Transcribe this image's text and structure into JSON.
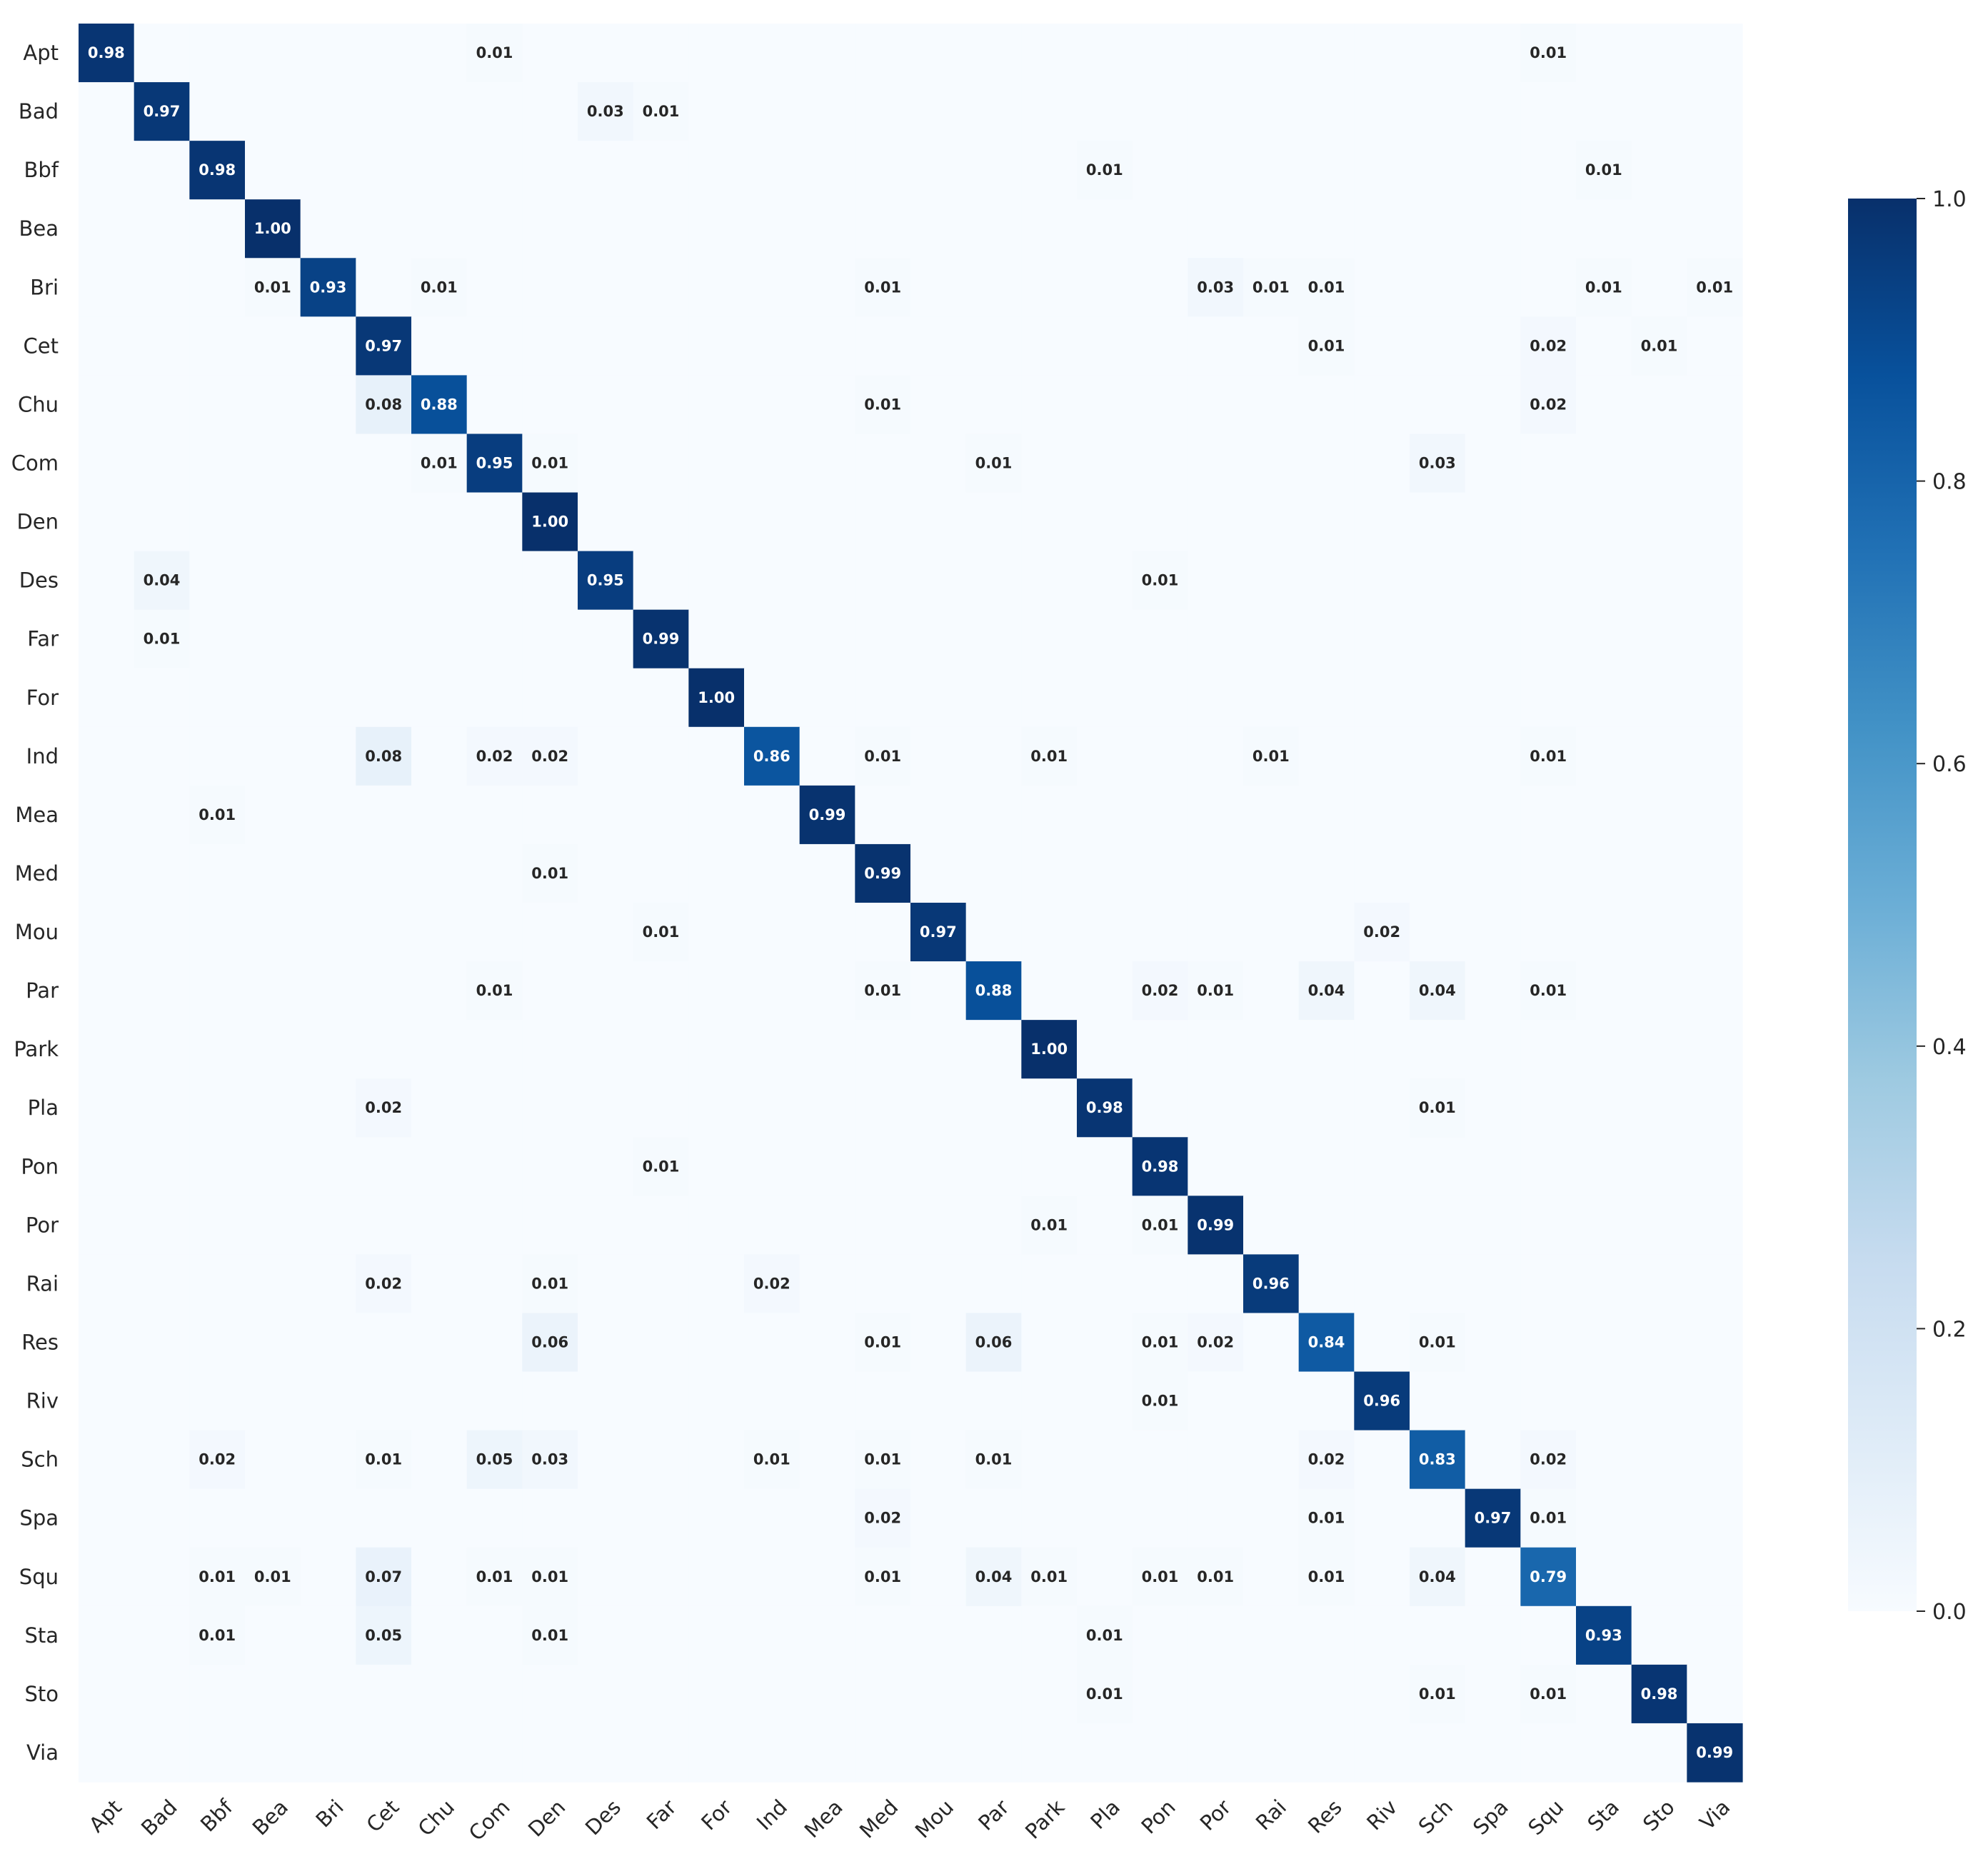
{
  "chart_data": {
    "type": "heatmap",
    "title": "",
    "xlabel": "",
    "ylabel": "",
    "labels": [
      "Apt",
      "Bad",
      "Bbf",
      "Bea",
      "Bri",
      "Cet",
      "Chu",
      "Com",
      "Den",
      "Des",
      "Far",
      "For",
      "Ind",
      "Mea",
      "Med",
      "Mou",
      "Par",
      "Park",
      "Pla",
      "Pon",
      "Por",
      "Rai",
      "Res",
      "Riv",
      "Sch",
      "Spa",
      "Squ",
      "Sta",
      "Sto",
      "Via"
    ],
    "x_tick_rotation_deg": 45,
    "value_format": "2 decimals",
    "colormap": "Blues",
    "color_range": [
      0.0,
      1.0
    ],
    "colorbar_ticks": [
      "0.0",
      "0.2",
      "0.4",
      "0.6",
      "0.8",
      "1.0"
    ],
    "colorbar_placement": "right",
    "annotate_threshold": 0.005,
    "matrix": [
      [
        0.98,
        0,
        0,
        0,
        0,
        0,
        0,
        0.01,
        0,
        0,
        0,
        0,
        0,
        0,
        0,
        0,
        0,
        0,
        0,
        0,
        0,
        0,
        0,
        0,
        0,
        0,
        0.01,
        0,
        0,
        0
      ],
      [
        0,
        0.97,
        0,
        0,
        0,
        0,
        0,
        0,
        0,
        0.03,
        0.01,
        0,
        0,
        0,
        0,
        0,
        0,
        0,
        0,
        0,
        0,
        0,
        0,
        0,
        0,
        0,
        0,
        0,
        0,
        0
      ],
      [
        0,
        0,
        0.98,
        0,
        0,
        0,
        0,
        0,
        0,
        0,
        0,
        0,
        0,
        0,
        0,
        0,
        0,
        0,
        0.01,
        0,
        0,
        0,
        0,
        0,
        0,
        0,
        0,
        0.01,
        0,
        0
      ],
      [
        0,
        0,
        0,
        1.0,
        0,
        0,
        0,
        0,
        0,
        0,
        0,
        0,
        0,
        0,
        0,
        0,
        0,
        0,
        0,
        0,
        0,
        0,
        0,
        0,
        0,
        0,
        0,
        0,
        0,
        0
      ],
      [
        0,
        0,
        0,
        0.01,
        0.93,
        0,
        0.01,
        0,
        0,
        0,
        0,
        0,
        0,
        0,
        0.01,
        0,
        0,
        0,
        0,
        0,
        0.03,
        0.01,
        0.01,
        0,
        0,
        0,
        0,
        0.01,
        0,
        0.01
      ],
      [
        0,
        0,
        0,
        0,
        0,
        0.97,
        0,
        0,
        0,
        0,
        0,
        0,
        0,
        0,
        0,
        0,
        0,
        0,
        0,
        0,
        0,
        0,
        0.01,
        0,
        0,
        0,
        0.02,
        0,
        0.01,
        0
      ],
      [
        0,
        0,
        0,
        0,
        0,
        0.08,
        0.88,
        0,
        0,
        0,
        0,
        0,
        0,
        0,
        0.01,
        0,
        0,
        0,
        0,
        0,
        0,
        0,
        0,
        0,
        0,
        0,
        0.02,
        0,
        0,
        0
      ],
      [
        0,
        0,
        0,
        0,
        0,
        0,
        0.01,
        0.95,
        0.01,
        0,
        0,
        0,
        0,
        0,
        0,
        0,
        0.01,
        0,
        0,
        0,
        0,
        0,
        0,
        0,
        0.03,
        0,
        0,
        0,
        0,
        0
      ],
      [
        0,
        0,
        0,
        0,
        0,
        0,
        0,
        0,
        1.0,
        0,
        0,
        0,
        0,
        0,
        0,
        0,
        0,
        0,
        0,
        0,
        0,
        0,
        0,
        0,
        0,
        0,
        0,
        0,
        0,
        0
      ],
      [
        0,
        0.04,
        0,
        0,
        0,
        0,
        0,
        0,
        0,
        0.95,
        0,
        0,
        0,
        0,
        0,
        0,
        0,
        0,
        0,
        0.01,
        0,
        0,
        0,
        0,
        0,
        0,
        0,
        0,
        0,
        0
      ],
      [
        0,
        0.01,
        0,
        0,
        0,
        0,
        0,
        0,
        0,
        0,
        0.99,
        0,
        0,
        0,
        0,
        0,
        0,
        0,
        0,
        0,
        0,
        0,
        0,
        0,
        0,
        0,
        0,
        0,
        0,
        0
      ],
      [
        0,
        0,
        0,
        0,
        0,
        0,
        0,
        0,
        0,
        0,
        0,
        1.0,
        0,
        0,
        0,
        0,
        0,
        0,
        0,
        0,
        0,
        0,
        0,
        0,
        0,
        0,
        0,
        0,
        0,
        0
      ],
      [
        0,
        0,
        0,
        0,
        0,
        0.08,
        0,
        0.02,
        0.02,
        0,
        0,
        0,
        0.86,
        0,
        0.01,
        0,
        0,
        0.01,
        0,
        0,
        0,
        0.01,
        0,
        0,
        0,
        0,
        0.01,
        0,
        0,
        0
      ],
      [
        0,
        0,
        0.01,
        0,
        0,
        0,
        0,
        0,
        0,
        0,
        0,
        0,
        0,
        0.99,
        0,
        0,
        0,
        0,
        0,
        0,
        0,
        0,
        0,
        0,
        0,
        0,
        0,
        0,
        0,
        0
      ],
      [
        0,
        0,
        0,
        0,
        0,
        0,
        0,
        0,
        0.01,
        0,
        0,
        0,
        0,
        0,
        0.99,
        0,
        0,
        0,
        0,
        0,
        0,
        0,
        0,
        0,
        0,
        0,
        0,
        0,
        0,
        0
      ],
      [
        0,
        0,
        0,
        0,
        0,
        0,
        0,
        0,
        0,
        0,
        0.01,
        0,
        0,
        0,
        0,
        0.97,
        0,
        0,
        0,
        0,
        0,
        0,
        0,
        0.02,
        0,
        0,
        0,
        0,
        0,
        0
      ],
      [
        0,
        0,
        0,
        0,
        0,
        0,
        0,
        0.01,
        0,
        0,
        0,
        0,
        0,
        0,
        0.01,
        0,
        0.88,
        0,
        0,
        0.02,
        0.01,
        0,
        0.04,
        0,
        0.04,
        0,
        0.01,
        0,
        0,
        0
      ],
      [
        0,
        0,
        0,
        0,
        0,
        0,
        0,
        0,
        0,
        0,
        0,
        0,
        0,
        0,
        0,
        0,
        0,
        1.0,
        0,
        0,
        0,
        0,
        0,
        0,
        0,
        0,
        0,
        0,
        0,
        0
      ],
      [
        0,
        0,
        0,
        0,
        0,
        0.02,
        0,
        0,
        0,
        0,
        0,
        0,
        0,
        0,
        0,
        0,
        0,
        0,
        0.98,
        0,
        0,
        0,
        0,
        0,
        0.01,
        0,
        0,
        0,
        0,
        0
      ],
      [
        0,
        0,
        0,
        0,
        0,
        0,
        0,
        0,
        0,
        0,
        0.01,
        0,
        0,
        0,
        0,
        0,
        0,
        0,
        0,
        0.98,
        0,
        0,
        0,
        0,
        0,
        0,
        0,
        0,
        0,
        0
      ],
      [
        0,
        0,
        0,
        0,
        0,
        0,
        0,
        0,
        0,
        0,
        0,
        0,
        0,
        0,
        0,
        0,
        0,
        0.01,
        0,
        0.01,
        0.99,
        0,
        0,
        0,
        0,
        0,
        0,
        0,
        0,
        0
      ],
      [
        0,
        0,
        0,
        0,
        0,
        0.02,
        0,
        0,
        0.01,
        0,
        0,
        0,
        0.02,
        0,
        0,
        0,
        0,
        0,
        0,
        0,
        0,
        0.96,
        0,
        0,
        0,
        0,
        0,
        0,
        0,
        0
      ],
      [
        0,
        0,
        0,
        0,
        0,
        0,
        0,
        0,
        0.06,
        0,
        0,
        0,
        0,
        0,
        0.01,
        0,
        0.06,
        0,
        0,
        0.01,
        0.02,
        0,
        0.84,
        0,
        0.01,
        0,
        0,
        0,
        0,
        0
      ],
      [
        0,
        0,
        0,
        0,
        0,
        0,
        0,
        0,
        0,
        0,
        0,
        0,
        0,
        0,
        0,
        0,
        0,
        0,
        0,
        0.01,
        0,
        0,
        0,
        0.96,
        0,
        0,
        0,
        0,
        0,
        0
      ],
      [
        0,
        0,
        0.02,
        0,
        0,
        0.01,
        0,
        0.05,
        0.03,
        0,
        0,
        0,
        0.01,
        0,
        0.01,
        0,
        0.01,
        0,
        0,
        0,
        0,
        0,
        0.02,
        0,
        0.83,
        0,
        0.02,
        0,
        0,
        0
      ],
      [
        0,
        0,
        0,
        0,
        0,
        0,
        0,
        0,
        0,
        0,
        0,
        0,
        0,
        0,
        0.02,
        0,
        0,
        0,
        0,
        0,
        0,
        0,
        0.01,
        0,
        0,
        0.97,
        0.01,
        0,
        0,
        0
      ],
      [
        0,
        0,
        0.01,
        0.01,
        0,
        0.07,
        0,
        0.01,
        0.01,
        0,
        0,
        0,
        0,
        0,
        0.01,
        0,
        0.04,
        0.01,
        0,
        0.01,
        0.01,
        0,
        0.01,
        0,
        0.04,
        0,
        0.79,
        0,
        0,
        0
      ],
      [
        0,
        0,
        0.01,
        0,
        0,
        0.05,
        0,
        0,
        0.01,
        0,
        0,
        0,
        0,
        0,
        0,
        0,
        0,
        0,
        0.01,
        0,
        0,
        0,
        0,
        0,
        0,
        0,
        0,
        0.93,
        0,
        0
      ],
      [
        0,
        0,
        0,
        0,
        0,
        0,
        0,
        0,
        0,
        0,
        0,
        0,
        0,
        0,
        0,
        0,
        0,
        0,
        0.01,
        0,
        0,
        0,
        0,
        0,
        0.01,
        0,
        0.01,
        0,
        0.98,
        0
      ],
      [
        0,
        0,
        0,
        0,
        0,
        0,
        0,
        0,
        0,
        0,
        0,
        0,
        0,
        0,
        0,
        0,
        0,
        0,
        0,
        0,
        0,
        0,
        0,
        0,
        0,
        0,
        0,
        0,
        0,
        0.99
      ]
    ]
  }
}
